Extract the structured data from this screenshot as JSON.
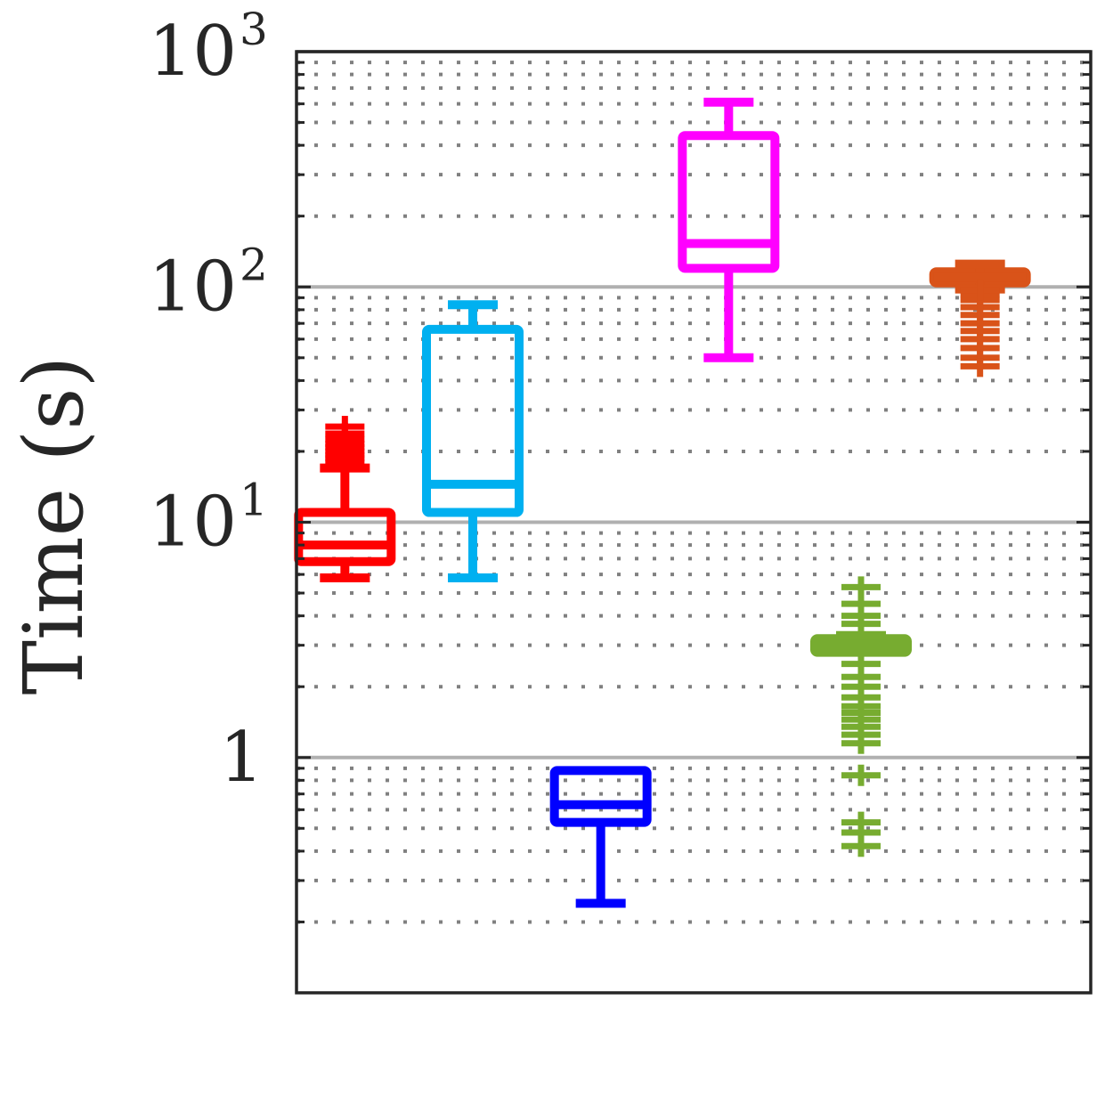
{
  "chart_data": {
    "type": "boxplot",
    "title": "",
    "xlabel": "",
    "ylabel": "Time (s)",
    "yscale": "log",
    "ylim": [
      0.1,
      1000
    ],
    "major_ticks": [
      {
        "value": 1,
        "base": "1",
        "exp": ""
      },
      {
        "value": 10,
        "base": "10",
        "exp": "1"
      },
      {
        "value": 100,
        "base": "10",
        "exp": "2"
      },
      {
        "value": 1000,
        "base": "10",
        "exp": "3"
      }
    ],
    "grid": {
      "major": true,
      "minor": true,
      "minor_style": "dotted"
    },
    "x_tick_labels": false,
    "series": [
      {
        "color": "#ff0000",
        "whisker_low": 5.8,
        "q1": 6.8,
        "median": 8.0,
        "q3": 11.0,
        "whisker_high": 17.0,
        "outliers": [
          18.0,
          18.7,
          19.3,
          20.0,
          20.8,
          21.5,
          22.5,
          23.8,
          25.5
        ]
      },
      {
        "color": "#00b0f0",
        "whisker_low": 5.8,
        "q1": 11.0,
        "median": 14.5,
        "q3": 66.0,
        "whisker_high": 84.0,
        "outliers": []
      },
      {
        "color": "#0000ff",
        "whisker_low": 0.24,
        "q1": 0.53,
        "median": 0.63,
        "q3": 0.88,
        "whisker_high": 0.88,
        "outliers": []
      },
      {
        "color": "#ff00ff",
        "whisker_low": 50.0,
        "q1": 120.0,
        "median": 153.0,
        "q3": 440.0,
        "whisker_high": 610.0,
        "outliers": []
      },
      {
        "color": "#77ac30",
        "whisker_low": 2.8,
        "q1": 2.8,
        "median": 2.95,
        "q3": 3.2,
        "whisker_high": 3.3,
        "outliers": [
          0.42,
          0.48,
          0.53,
          0.84,
          1.15,
          1.25,
          1.35,
          1.45,
          1.55,
          1.65,
          1.8,
          2.0,
          2.2,
          2.5,
          3.7,
          4.0,
          4.5,
          5.3
        ]
      },
      {
        "color": "#d95319",
        "whisker_low": 98.0,
        "q1": 104.0,
        "median": 110.0,
        "q3": 116.0,
        "whisker_high": 125.0,
        "outliers": [
          46.0,
          50.0,
          55.0,
          60.0,
          65.0,
          70.0,
          76.0,
          82.0,
          88.0,
          93.0,
          97.0
        ]
      }
    ]
  }
}
